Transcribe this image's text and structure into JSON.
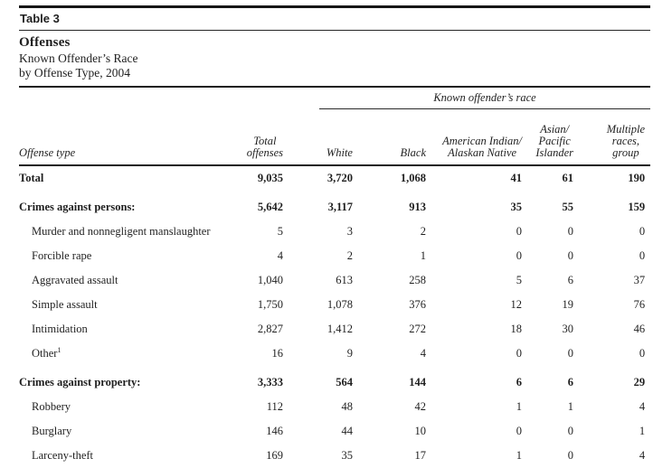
{
  "ink_color": "#1f1f1f",
  "header": {
    "table_label": "Table 3",
    "title": "Offenses",
    "subtitle_line1": "Known Offender’s Race",
    "subtitle_line2": "by Offense Type, 2004"
  },
  "table": {
    "spanner_label": "Known offender’s race",
    "columns": {
      "offense_type": "Offense type",
      "total_offenses": "Total\noffenses",
      "white": "White",
      "black": "Black",
      "american_indian": "American Indian/\nAlaskan Native",
      "asian_pacific": "Asian/\nPacific\nIslander",
      "multiple_races": "Multiple\nraces,\ngroup"
    },
    "rows": [
      {
        "label": "Total",
        "bold": true,
        "indent": false,
        "gap": false,
        "values": [
          "9,035",
          "3,720",
          "1,068",
          "41",
          "61",
          "190"
        ]
      },
      {
        "label": "Crimes against persons:",
        "bold": true,
        "indent": false,
        "gap": true,
        "values": [
          "5,642",
          "3,117",
          "913",
          "35",
          "55",
          "159"
        ]
      },
      {
        "label": "Murder and nonnegligent manslaughter",
        "bold": false,
        "indent": true,
        "gap": false,
        "values": [
          "5",
          "3",
          "2",
          "0",
          "0",
          "0"
        ]
      },
      {
        "label": "Forcible rape",
        "bold": false,
        "indent": true,
        "gap": false,
        "values": [
          "4",
          "2",
          "1",
          "0",
          "0",
          "0"
        ]
      },
      {
        "label": "Aggravated assault",
        "bold": false,
        "indent": true,
        "gap": false,
        "values": [
          "1,040",
          "613",
          "258",
          "5",
          "6",
          "37"
        ]
      },
      {
        "label": "Simple assault",
        "bold": false,
        "indent": true,
        "gap": false,
        "values": [
          "1,750",
          "1,078",
          "376",
          "12",
          "19",
          "76"
        ]
      },
      {
        "label": "Intimidation",
        "bold": false,
        "indent": true,
        "gap": false,
        "values": [
          "2,827",
          "1,412",
          "272",
          "18",
          "30",
          "46"
        ]
      },
      {
        "label": "Other",
        "sup": "1",
        "bold": false,
        "indent": true,
        "gap": false,
        "values": [
          "16",
          "9",
          "4",
          "0",
          "0",
          "0"
        ]
      },
      {
        "label": "Crimes against property:",
        "bold": true,
        "indent": false,
        "gap": true,
        "values": [
          "3,333",
          "564",
          "144",
          "6",
          "6",
          "29"
        ]
      },
      {
        "label": "Robbery",
        "bold": false,
        "indent": true,
        "gap": false,
        "values": [
          "112",
          "48",
          "42",
          "1",
          "1",
          "4"
        ]
      },
      {
        "label": "Burglary",
        "bold": false,
        "indent": true,
        "gap": false,
        "values": [
          "146",
          "44",
          "10",
          "0",
          "0",
          "1"
        ]
      },
      {
        "label": "Larceny-theft",
        "bold": false,
        "indent": true,
        "gap": false,
        "values": [
          "169",
          "35",
          "17",
          "1",
          "0",
          "4"
        ]
      }
    ]
  }
}
